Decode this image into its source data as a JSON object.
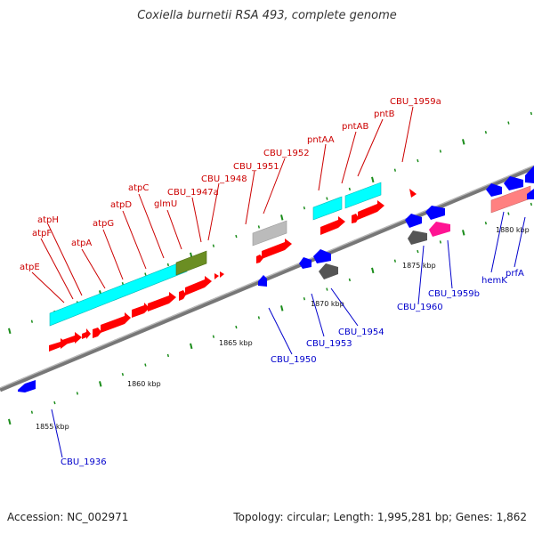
{
  "title": "Coxiella burnetii RSA 493, complete genome",
  "accession": "Accession: NC_002971",
  "topology": "Topology: circular; Length: 1,995,281 bp; Genes: 1,862",
  "colors": {
    "backbone": "#888888",
    "forward_cds": "#ff0000",
    "reverse_cds": "#0000ff",
    "other_genes": "#00ffff",
    "tick": "#1a8c1a",
    "label_forward": "#cc0000",
    "label_reverse": "#0000cc"
  },
  "kbp_labels": [
    "1855 kbp",
    "1860 kbp",
    "1865 kbp",
    "1870 kbp",
    "1875 kbp",
    "1880 kbp"
  ],
  "labels_top": [
    "atpE",
    "atpF",
    "atpH",
    "atpA",
    "atpG",
    "atpD",
    "atpC",
    "glmU",
    "CBU_1947a",
    "CBU_1948",
    "CBU_1951",
    "CBU_1952",
    "pntAA",
    "pntAB",
    "pntB",
    "CBU_1959a"
  ],
  "labels_bottom": [
    "CBU_1936",
    "CBU_1950",
    "CBU_1953",
    "CBU_1954",
    "CBU_1960",
    "CBU_1959b",
    "hemK",
    "prfA"
  ]
}
